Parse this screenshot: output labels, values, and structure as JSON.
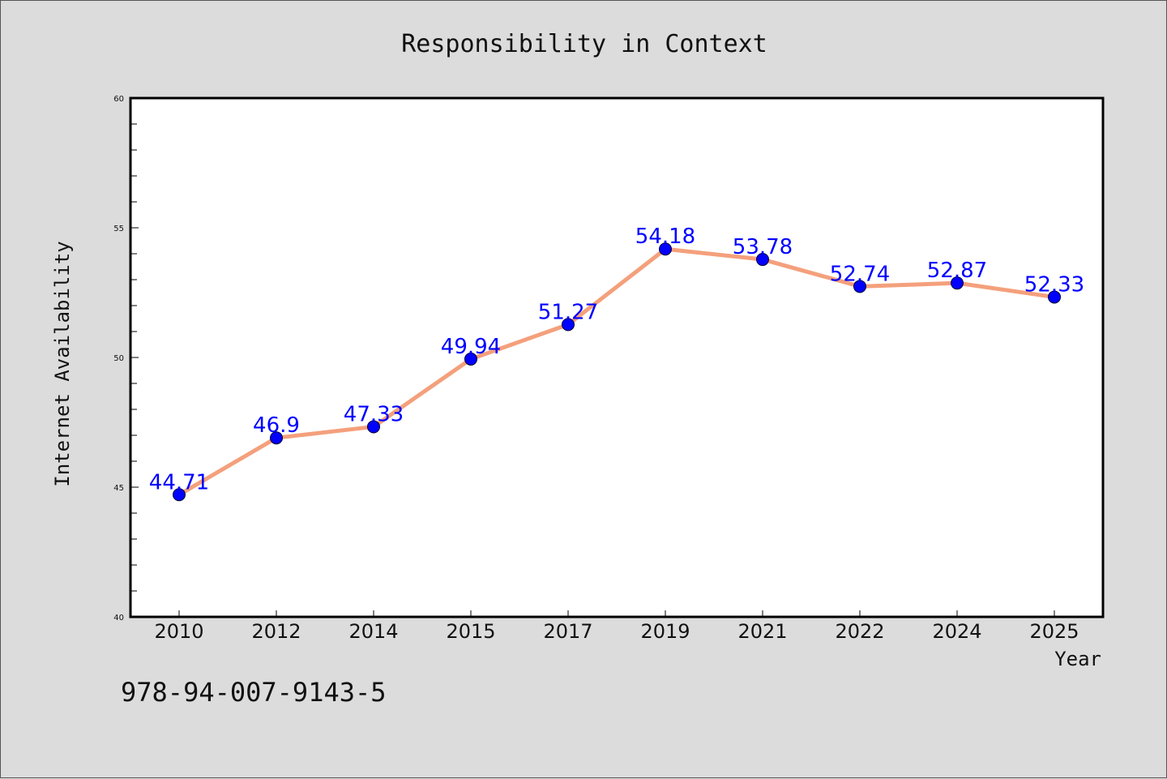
{
  "chart_data": {
    "type": "line",
    "title": "Responsibility in Context",
    "xlabel": "Year",
    "ylabel": "Internet Availability",
    "categories": [
      "2010",
      "2012",
      "2014",
      "2015",
      "2017",
      "2019",
      "2021",
      "2022",
      "2024",
      "2025"
    ],
    "series": [
      {
        "values": [
          44.71,
          46.9,
          47.33,
          49.94,
          51.27,
          54.18,
          53.78,
          52.74,
          52.87,
          52.33
        ],
        "labels": [
          "44.71",
          "46.9",
          "47.33",
          "49.94",
          "51.27",
          "54.18",
          "53.78",
          "52.74",
          "52.87",
          "52.33"
        ]
      }
    ],
    "ylim": [
      40,
      60
    ],
    "yticks": [
      "40",
      "45",
      "50",
      "55",
      "60"
    ],
    "y_minor_step": 1,
    "grid": false,
    "colors": {
      "line": "#f4a07c",
      "marker": "#0000ff",
      "label": "#0000ff",
      "background": "#dcdcdc",
      "plot": "#ffffff"
    }
  },
  "footer": {
    "isbn": "978-94-007-9143-5"
  }
}
